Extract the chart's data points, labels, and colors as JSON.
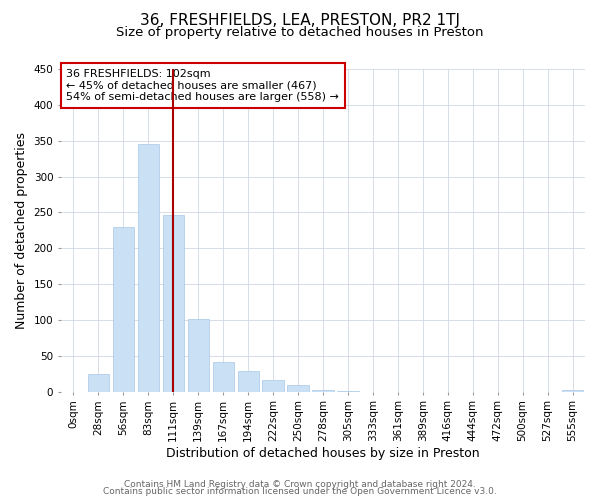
{
  "title": "36, FRESHFIELDS, LEA, PRESTON, PR2 1TJ",
  "subtitle": "Size of property relative to detached houses in Preston",
  "xlabel": "Distribution of detached houses by size in Preston",
  "ylabel": "Number of detached properties",
  "bar_labels": [
    "0sqm",
    "28sqm",
    "56sqm",
    "83sqm",
    "111sqm",
    "139sqm",
    "167sqm",
    "194sqm",
    "222sqm",
    "250sqm",
    "278sqm",
    "305sqm",
    "333sqm",
    "361sqm",
    "389sqm",
    "416sqm",
    "444sqm",
    "472sqm",
    "500sqm",
    "527sqm",
    "555sqm"
  ],
  "bar_values": [
    0,
    25,
    229,
    346,
    246,
    101,
    41,
    29,
    16,
    10,
    2,
    1,
    0,
    0,
    0,
    0,
    0,
    0,
    0,
    0,
    2
  ],
  "bar_color": "#c9e0f5",
  "bar_edge_color": "#a8c8e8",
  "vline_x_index": 4,
  "vline_color": "#aa0000",
  "annotation_line1": "36 FRESHFIELDS: 102sqm",
  "annotation_line2": "← 45% of detached houses are smaller (467)",
  "annotation_line3": "54% of semi-detached houses are larger (558) →",
  "annotation_box_color": "#ffffff",
  "annotation_box_edge": "#cc0000",
  "ylim": [
    0,
    450
  ],
  "yticks": [
    0,
    50,
    100,
    150,
    200,
    250,
    300,
    350,
    400,
    450
  ],
  "footer1": "Contains HM Land Registry data © Crown copyright and database right 2024.",
  "footer2": "Contains public sector information licensed under the Open Government Licence v3.0.",
  "background_color": "#ffffff",
  "grid_color": "#d0d8e4",
  "title_fontsize": 11,
  "subtitle_fontsize": 9.5,
  "axis_label_fontsize": 9,
  "tick_fontsize": 7.5,
  "annotation_fontsize": 8,
  "footer_fontsize": 6.5
}
